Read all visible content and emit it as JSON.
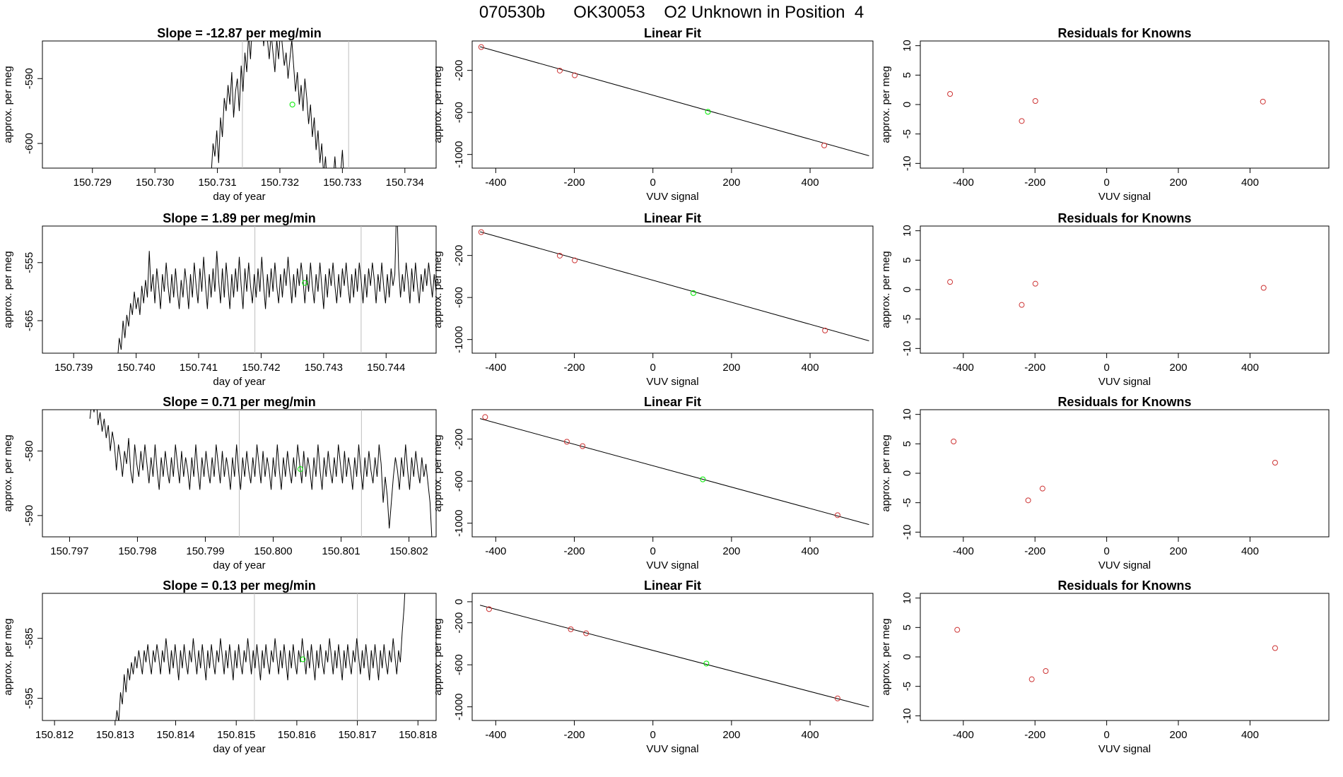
{
  "page_title": "070530b      OK30053    O2 Unknown in Position  4",
  "colors": {
    "known": "#cd3333",
    "unknown": "#00ee00",
    "line": "#000000",
    "vline": "#bebebe"
  },
  "chart_data": [
    {
      "type": "line",
      "title": "Slope =  -12.87  per meg/min",
      "xlabel": "day of year",
      "ylabel": "approx. per meg",
      "xlim": [
        150.7282,
        150.7345
      ],
      "ylim": [
        -603.8,
        -584.2
      ],
      "xticks": [
        "150.729",
        "150.730",
        "150.731",
        "150.732",
        "150.733",
        "150.734"
      ],
      "yticks": [
        "-590",
        "-600"
      ],
      "vlines": [
        150.7314,
        150.7331
      ],
      "unknown_point": {
        "x": 150.7322,
        "y": -594
      },
      "trace": {
        "start": 150.7309,
        "end": 150.7331,
        "step": 3e-05,
        "y": [
          -605,
          -600,
          -602,
          -598,
          -603,
          -596,
          -599,
          -593,
          -595,
          -591,
          -594,
          -589,
          -596,
          -592,
          -590,
          -595,
          -588,
          -592,
          -586,
          -589,
          -583,
          -587,
          -581,
          -584,
          -582,
          -580,
          -583,
          -579,
          -585,
          -581,
          -584,
          -587,
          -583,
          -586,
          -589,
          -584,
          -587,
          -582,
          -585,
          -588,
          -586,
          -590,
          -587,
          -584,
          -588,
          -592,
          -589,
          -594,
          -591,
          -595,
          -590,
          -593,
          -597,
          -594,
          -599,
          -596,
          -601,
          -598,
          -603,
          -600,
          -605,
          -602,
          -607,
          -604,
          -609,
          -606,
          -602,
          -606,
          -610,
          -605,
          -601,
          -606,
          -610,
          -608
        ]
      }
    },
    {
      "type": "line",
      "title": "Slope =  1.89  per meg/min",
      "xlabel": "day of year",
      "ylabel": "approx. per meg",
      "xlim": [
        150.7385,
        150.7448
      ],
      "ylim": [
        -570.6,
        -548.7
      ],
      "xticks": [
        "150.739",
        "150.740",
        "150.741",
        "150.742",
        "150.743",
        "150.744"
      ],
      "yticks": [
        "-555",
        "-565"
      ],
      "vlines": [
        150.7419,
        150.7436
      ],
      "unknown_point": {
        "x": 150.7427,
        "y": -558.5
      },
      "trace": {
        "start": 150.7397,
        "end": 150.7446,
        "step": 3e-05,
        "y": [
          -572,
          -568,
          -570,
          -565,
          -568,
          -564,
          -566,
          -562,
          -564,
          -560,
          -563,
          -561,
          -564,
          -559,
          -562,
          -558,
          -561,
          -553,
          -560,
          -557,
          -562,
          -556,
          -559,
          -563,
          -557,
          -560,
          -555,
          -559,
          -562,
          -557,
          -561,
          -556,
          -560,
          -563,
          -558,
          -561,
          -556,
          -559,
          -563,
          -557,
          -561,
          -555,
          -559,
          -562,
          -556,
          -560,
          -554,
          -559,
          -563,
          -557,
          -561,
          -556,
          -560,
          -553,
          -558,
          -562,
          -556,
          -561,
          -555,
          -559,
          -563,
          -557,
          -561,
          -556,
          -560,
          -554,
          -559,
          -563,
          -556,
          -560,
          -555,
          -559,
          -562,
          -557,
          -561,
          -556,
          -560,
          -554,
          -559,
          -563,
          -557,
          -561,
          -556,
          -560,
          -555,
          -559,
          -562,
          -557,
          -561,
          -556,
          -559,
          -554,
          -558,
          -562,
          -557,
          -561,
          -556,
          -559,
          -555,
          -558,
          -562,
          -557,
          -560,
          -555,
          -559,
          -562,
          -557,
          -560,
          -555,
          -559,
          -563,
          -557,
          -561,
          -556,
          -559,
          -555,
          -559,
          -562,
          -557,
          -561,
          -556,
          -559,
          -555,
          -559,
          -562,
          -557,
          -561,
          -556,
          -560,
          -555,
          -558,
          -562,
          -557,
          -561,
          -556,
          -559,
          -555,
          -558,
          -562,
          -557,
          -560,
          -555,
          -559,
          -562,
          -557,
          -561,
          -556,
          -559,
          -557,
          -544,
          -556,
          -561,
          -557,
          -560,
          -555,
          -558,
          -562,
          -556,
          -560,
          -555,
          -559,
          -562,
          -557,
          -560,
          -556,
          -559,
          -555,
          -558,
          -561,
          -557,
          -560,
          -555,
          -552,
          -556,
          -553,
          -550,
          -546,
          -540
        ]
      }
    },
    {
      "type": "line",
      "title": "Slope =  0.71  per meg/min",
      "xlabel": "day of year",
      "ylabel": "approx. per meg",
      "xlim": [
        150.7966,
        150.8024
      ],
      "ylim": [
        -593.3,
        -573.6
      ],
      "xticks": [
        "150.797",
        "150.798",
        "150.799",
        "150.800",
        "150.801",
        "150.802"
      ],
      "yticks": [
        "-580",
        "-590"
      ],
      "vlines": [
        150.7995,
        150.8013
      ],
      "unknown_point": {
        "x": 150.8004,
        "y": -582.8
      },
      "trace": {
        "start": 150.7973,
        "end": 150.802,
        "step": 3e-05,
        "y": [
          -575,
          -572,
          -574,
          -571,
          -576,
          -574,
          -577,
          -575,
          -578,
          -576,
          -580,
          -577,
          -579,
          -583,
          -579,
          -581,
          -584,
          -580,
          -582,
          -578,
          -583,
          -585,
          -579,
          -582,
          -584,
          -580,
          -583,
          -579,
          -582,
          -585,
          -581,
          -584,
          -579,
          -583,
          -586,
          -581,
          -584,
          -580,
          -583,
          -585,
          -581,
          -584,
          -579,
          -582,
          -585,
          -580,
          -584,
          -581,
          -583,
          -586,
          -581,
          -584,
          -579,
          -583,
          -586,
          -581,
          -584,
          -580,
          -583,
          -585,
          -581,
          -584,
          -579,
          -582,
          -585,
          -580,
          -584,
          -581,
          -583,
          -586,
          -581,
          -584,
          -579,
          -583,
          -586,
          -581,
          -584,
          -580,
          -583,
          -585,
          -581,
          -584,
          -579,
          -582,
          -585,
          -580,
          -584,
          -581,
          -583,
          -586,
          -581,
          -584,
          -579,
          -583,
          -586,
          -581,
          -584,
          -580,
          -583,
          -585,
          -581,
          -584,
          -579,
          -582,
          -585,
          -580,
          -584,
          -581,
          -583,
          -586,
          -581,
          -584,
          -579,
          -583,
          -586,
          -581,
          -584,
          -580,
          -583,
          -585,
          -581,
          -584,
          -579,
          -582,
          -585,
          -580,
          -584,
          -581,
          -583,
          -586,
          -581,
          -584,
          -579,
          -583,
          -586,
          -581,
          -584,
          -580,
          -583,
          -585,
          -581,
          -584,
          -579,
          -582,
          -588,
          -584,
          -587,
          -592,
          -588,
          -584,
          -581,
          -583,
          -586,
          -581,
          -584,
          -579,
          -583,
          -586,
          -581,
          -584,
          -580,
          -583,
          -585,
          -581,
          -584,
          -582,
          -585,
          -588,
          -594
        ]
      }
    },
    {
      "type": "line",
      "title": "Slope =  0.13  per meg/min",
      "xlabel": "day of year",
      "ylabel": "approx. per meg",
      "xlim": [
        150.8118,
        150.8183
      ],
      "ylim": [
        -598.7,
        -577.5
      ],
      "xticks": [
        "150.812",
        "150.813",
        "150.814",
        "150.815",
        "150.816",
        "150.817",
        "150.818"
      ],
      "yticks": [
        "-585",
        "-595"
      ],
      "vlines": [
        150.8153,
        150.817
      ],
      "unknown_point": {
        "x": 150.8161,
        "y": -588.5
      },
      "trace": {
        "start": 150.813,
        "end": 150.8178,
        "step": 3e-05,
        "y": [
          -600,
          -597,
          -599,
          -594,
          -596,
          -591,
          -594,
          -590,
          -592,
          -589,
          -591,
          -588,
          -590,
          -587,
          -589,
          -591,
          -587,
          -589,
          -586,
          -589,
          -591,
          -587,
          -589,
          -586,
          -588,
          -591,
          -587,
          -589,
          -585,
          -588,
          -591,
          -587,
          -590,
          -586,
          -589,
          -592,
          -587,
          -590,
          -586,
          -589,
          -591,
          -587,
          -589,
          -585,
          -588,
          -591,
          -587,
          -590,
          -586,
          -589,
          -592,
          -587,
          -590,
          -586,
          -589,
          -591,
          -587,
          -589,
          -585,
          -588,
          -591,
          -587,
          -590,
          -586,
          -589,
          -592,
          -587,
          -590,
          -586,
          -589,
          -591,
          -587,
          -589,
          -585,
          -588,
          -591,
          -587,
          -590,
          -586,
          -589,
          -592,
          -587,
          -590,
          -586,
          -589,
          -591,
          -587,
          -589,
          -585,
          -588,
          -591,
          -587,
          -590,
          -586,
          -589,
          -592,
          -587,
          -590,
          -586,
          -589,
          -591,
          -587,
          -589,
          -585,
          -588,
          -591,
          -587,
          -590,
          -586,
          -589,
          -592,
          -587,
          -590,
          -586,
          -589,
          -591,
          -587,
          -589,
          -585,
          -588,
          -591,
          -587,
          -590,
          -586,
          -589,
          -592,
          -587,
          -590,
          -586,
          -589,
          -591,
          -587,
          -589,
          -585,
          -588,
          -591,
          -587,
          -590,
          -586,
          -589,
          -592,
          -587,
          -590,
          -586,
          -589,
          -592,
          -587,
          -590,
          -586,
          -589,
          -591,
          -587,
          -589,
          -585,
          -588,
          -591,
          -587,
          -589,
          -584,
          -580,
          -574,
          -570
        ]
      }
    },
    {
      "type": "scatter",
      "title": "Linear Fit",
      "xlabel": "VUV signal",
      "ylabel": "approx. per meg",
      "xlim": [
        -460,
        560
      ],
      "ylim": [
        -1130,
        80
      ],
      "xticks": [
        -400,
        -200,
        0,
        200,
        400
      ],
      "yticks": [
        -200,
        -600,
        -1000
      ],
      "knowns": [
        [
          -437,
          22
        ],
        [
          -237,
          -202
        ],
        [
          -199,
          -247
        ],
        [
          436,
          -914
        ]
      ],
      "unknown": [
        [
          140,
          -594
        ]
      ],
      "fit": {
        "slope": -1.048,
        "intercept": -436
      }
    },
    {
      "type": "scatter",
      "title": "Linear Fit",
      "xlabel": "VUV signal",
      "ylabel": "approx. per meg",
      "xlim": [
        -460,
        560
      ],
      "ylim": [
        -1130,
        80
      ],
      "xticks": [
        -400,
        -200,
        0,
        200,
        400
      ],
      "yticks": [
        -200,
        -600,
        -1000
      ],
      "knowns": [
        [
          -437,
          22
        ],
        [
          -237,
          -202
        ],
        [
          -199,
          -247
        ],
        [
          438,
          -914
        ]
      ],
      "unknown": [
        [
          103,
          -558
        ]
      ],
      "fit": {
        "slope": -1.048,
        "intercept": -436
      }
    },
    {
      "type": "scatter",
      "title": "Linear Fit",
      "xlabel": "VUV signal",
      "ylabel": "approx. per meg",
      "xlim": [
        -460,
        560
      ],
      "ylim": [
        -1130,
        80
      ],
      "xticks": [
        -400,
        -200,
        0,
        200,
        400
      ],
      "yticks": [
        -200,
        -600,
        -1000
      ],
      "knowns": [
        [
          -427,
          10
        ],
        [
          -219,
          -225
        ],
        [
          -179,
          -267
        ],
        [
          470,
          -924
        ]
      ],
      "unknown": [
        [
          127,
          -583
        ]
      ],
      "fit": {
        "slope": -1.018,
        "intercept": -453
      }
    },
    {
      "type": "scatter",
      "title": "Linear Fit",
      "xlabel": "VUV signal",
      "ylabel": "approx. per meg",
      "xlim": [
        -460,
        560
      ],
      "ylim": [
        -1130,
        80
      ],
      "xticks": [
        -400,
        -200,
        0,
        200,
        400
      ],
      "yticks": [
        0,
        -200,
        -600,
        -1000
      ],
      "knowns": [
        [
          -417,
          -70
        ],
        [
          -209,
          -262
        ],
        [
          -170,
          -300
        ],
        [
          470,
          -920
        ]
      ],
      "unknown": [
        [
          136,
          -588
        ]
      ],
      "fit": {
        "slope": -0.978,
        "intercept": -463
      }
    },
    {
      "type": "scatter",
      "title": "Residuals for Knowns",
      "xlabel": "VUV signal",
      "ylabel": "approx. per meg",
      "xlim": [
        -520,
        620
      ],
      "ylim": [
        -10.8,
        10.8
      ],
      "xticks": [
        -400,
        -200,
        0,
        200,
        400
      ],
      "yticks": [
        10,
        5,
        0,
        -5,
        -10
      ],
      "points": [
        [
          -437,
          1.8
        ],
        [
          -237,
          -2.8
        ],
        [
          -199,
          0.6
        ],
        [
          436,
          0.5
        ]
      ]
    },
    {
      "type": "scatter",
      "title": "Residuals for Knowns",
      "xlabel": "VUV signal",
      "ylabel": "approx. per meg",
      "xlim": [
        -520,
        620
      ],
      "ylim": [
        -10.8,
        10.8
      ],
      "xticks": [
        -400,
        -200,
        0,
        200,
        400
      ],
      "yticks": [
        10,
        5,
        0,
        -5,
        -10
      ],
      "points": [
        [
          -437,
          1.3
        ],
        [
          -237,
          -2.6
        ],
        [
          -199,
          1.0
        ],
        [
          438,
          0.3
        ]
      ]
    },
    {
      "type": "scatter",
      "title": "Residuals for Knowns",
      "xlabel": "VUV signal",
      "ylabel": "approx. per meg",
      "xlim": [
        -520,
        620
      ],
      "ylim": [
        -10.8,
        10.8
      ],
      "xticks": [
        -400,
        -200,
        0,
        200,
        400
      ],
      "yticks": [
        10,
        5,
        0,
        -5,
        -10
      ],
      "points": [
        [
          -427,
          5.4
        ],
        [
          -219,
          -4.6
        ],
        [
          -179,
          -2.6
        ],
        [
          470,
          1.8
        ]
      ]
    },
    {
      "type": "scatter",
      "title": "Residuals for Knowns",
      "xlabel": "VUV signal",
      "ylabel": "approx. per meg",
      "xlim": [
        -520,
        620
      ],
      "ylim": [
        -10.8,
        10.8
      ],
      "xticks": [
        -400,
        -200,
        0,
        200,
        400
      ],
      "yticks": [
        10,
        5,
        0,
        -5,
        -10
      ],
      "points": [
        [
          -417,
          4.6
        ],
        [
          -209,
          -3.8
        ],
        [
          -170,
          -2.4
        ],
        [
          470,
          1.5
        ]
      ]
    }
  ]
}
